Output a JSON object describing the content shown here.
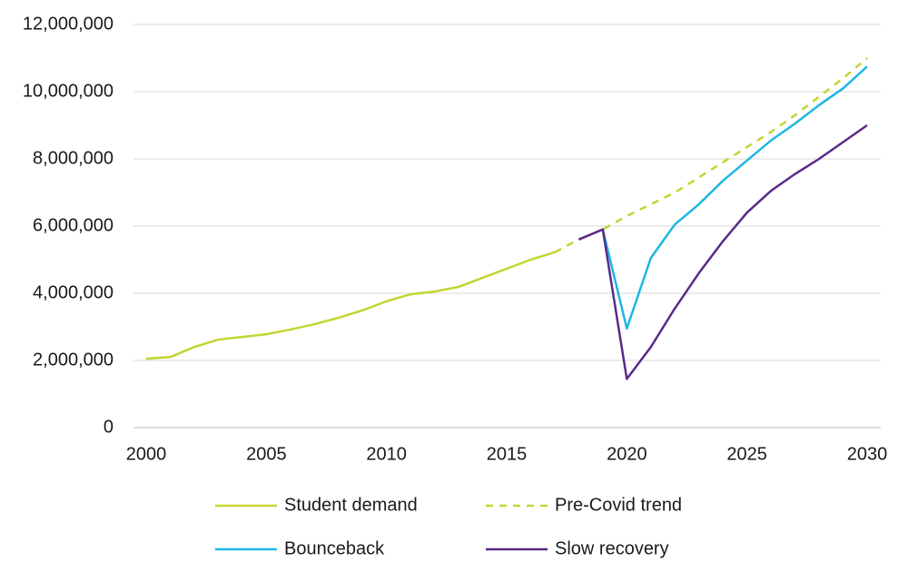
{
  "chart_data": {
    "type": "line",
    "x": [
      2000,
      2001,
      2002,
      2003,
      2004,
      2005,
      2006,
      2007,
      2008,
      2009,
      2010,
      2011,
      2012,
      2013,
      2014,
      2015,
      2016,
      2017,
      2018,
      2019,
      2020,
      2021,
      2022,
      2023,
      2024,
      2025,
      2026,
      2027,
      2028,
      2029,
      2030
    ],
    "series": [
      {
        "name": "Student demand",
        "color": "#c3d531",
        "dash": false,
        "values": [
          2050000,
          2100000,
          2400000,
          2620000,
          2700000,
          2780000,
          2920000,
          3080000,
          3270000,
          3490000,
          3760000,
          3970000,
          4050000,
          4190000,
          4460000,
          4730000,
          5000000,
          5220000,
          null,
          null,
          null,
          null,
          null,
          null,
          null,
          null,
          null,
          null,
          null,
          null,
          null
        ]
      },
      {
        "name": "Pre-Covid trend",
        "color": "#c3d531",
        "dash": true,
        "values": [
          null,
          null,
          null,
          null,
          null,
          null,
          null,
          null,
          null,
          null,
          null,
          null,
          null,
          null,
          null,
          null,
          null,
          5220000,
          5600000,
          5900000,
          6300000,
          6650000,
          7000000,
          7450000,
          7900000,
          8350000,
          8800000,
          9300000,
          9850000,
          10400000,
          11000000
        ]
      },
      {
        "name": "Bounceback",
        "color": "#1eb6e4",
        "dash": false,
        "values": [
          null,
          null,
          null,
          null,
          null,
          null,
          null,
          null,
          null,
          null,
          null,
          null,
          null,
          null,
          null,
          null,
          null,
          null,
          null,
          5900000,
          2950000,
          5050000,
          6050000,
          6650000,
          7350000,
          7950000,
          8550000,
          9050000,
          9600000,
          10100000,
          10750000
        ]
      },
      {
        "name": "Slow recovery",
        "color": "#5a2a88",
        "dash": false,
        "values": [
          null,
          null,
          null,
          null,
          null,
          null,
          null,
          null,
          null,
          null,
          null,
          null,
          null,
          null,
          null,
          null,
          null,
          null,
          5600000,
          5900000,
          1450000,
          2400000,
          3550000,
          4600000,
          5550000,
          6400000,
          7050000,
          7550000,
          8000000,
          8500000,
          9000000
        ]
      }
    ],
    "xlim": [
      2000,
      2030
    ],
    "xticks": [
      2000,
      2005,
      2010,
      2015,
      2020,
      2025,
      2030
    ],
    "ylim": [
      0,
      12000000
    ],
    "yticks": [
      0,
      {
        "value": 2000000,
        "label": "2,000,000"
      },
      {
        "value": 4000000,
        "label": "4,000,000"
      },
      {
        "value": 6000000,
        "label": "6,000,000"
      },
      {
        "value": 8000000,
        "label": "8,000,000"
      },
      {
        "value": 10000000,
        "label": "10,000,000"
      },
      {
        "value": 12000000,
        "label": "12,000,000"
      }
    ],
    "grid": true,
    "legend": "bottom"
  }
}
